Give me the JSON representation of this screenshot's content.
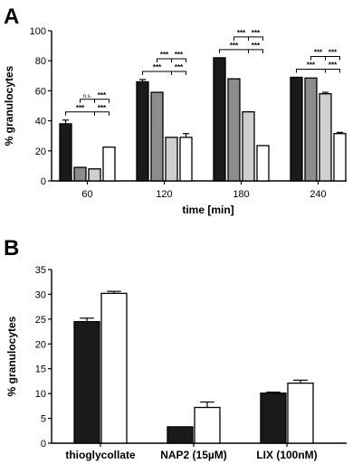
{
  "chart_data": [
    {
      "panel": "A",
      "type": "bar",
      "xlabel": "time [min]",
      "ylabel": "% granulocytes",
      "ylim": [
        0,
        100
      ],
      "yticks": [
        0,
        20,
        40,
        60,
        80,
        100
      ],
      "categories": [
        "60",
        "120",
        "180",
        "240"
      ],
      "series": [
        {
          "color": "#1a1a1a",
          "values": [
            38,
            66,
            82,
            69
          ],
          "errors": [
            2.5,
            1.5,
            0,
            0
          ]
        },
        {
          "color": "#8c8c8c",
          "values": [
            9,
            59,
            68,
            68.5
          ],
          "errors": [
            0,
            0,
            0,
            0
          ]
        },
        {
          "color": "#cfcfcf",
          "values": [
            8,
            29,
            46,
            58
          ],
          "errors": [
            0,
            0,
            0,
            1
          ]
        },
        {
          "color": "#ffffff",
          "values": [
            22.5,
            29,
            23.5,
            31.5
          ],
          "errors": [
            0,
            2.5,
            0,
            0.8
          ]
        }
      ],
      "annotations": [
        {
          "category": 0,
          "from": 1,
          "to": 2,
          "label": "n.s.",
          "level": 2
        },
        {
          "category": 0,
          "from": 2,
          "to": 3,
          "label": "***",
          "level": 2
        },
        {
          "category": 0,
          "from": 0,
          "to": 2,
          "label": "***",
          "level": 1
        },
        {
          "category": 0,
          "from": 2,
          "to": 3,
          "label": "***",
          "level": 1
        },
        {
          "category": 1,
          "from": 1,
          "to": 2,
          "label": "***",
          "level": 2
        },
        {
          "category": 1,
          "from": 2,
          "to": 3,
          "label": "***",
          "level": 2
        },
        {
          "category": 1,
          "from": 0,
          "to": 2,
          "label": "***",
          "level": 1
        },
        {
          "category": 1,
          "from": 2,
          "to": 3,
          "label": "***",
          "level": 1
        },
        {
          "category": 2,
          "from": 1,
          "to": 2,
          "label": "***",
          "level": 2
        },
        {
          "category": 2,
          "from": 2,
          "to": 3,
          "label": "***",
          "level": 2
        },
        {
          "category": 2,
          "from": 0,
          "to": 2,
          "label": "***",
          "level": 1
        },
        {
          "category": 2,
          "from": 2,
          "to": 3,
          "label": "***",
          "level": 1
        },
        {
          "category": 3,
          "from": 1,
          "to": 2,
          "label": "***",
          "level": 2
        },
        {
          "category": 3,
          "from": 2,
          "to": 3,
          "label": "***",
          "level": 2
        },
        {
          "category": 3,
          "from": 0,
          "to": 2,
          "label": "***",
          "level": 1
        },
        {
          "category": 3,
          "from": 2,
          "to": 3,
          "label": "***",
          "level": 1
        }
      ]
    },
    {
      "panel": "B",
      "type": "bar",
      "xlabel": "",
      "ylabel": "% granulocytes",
      "ylim": [
        0,
        35
      ],
      "yticks": [
        0,
        5,
        10,
        15,
        20,
        25,
        30,
        35
      ],
      "categories": [
        "thioglycollate",
        "NAP2 (15µM)",
        "LIX (100nM)"
      ],
      "series": [
        {
          "color": "#1a1a1a",
          "values": [
            24.5,
            3.3,
            10.1
          ],
          "errors": [
            0.7,
            0,
            0.2
          ]
        },
        {
          "color": "#ffffff",
          "values": [
            30.2,
            7.2,
            12.1
          ],
          "errors": [
            0.4,
            1.1,
            0.6
          ]
        }
      ]
    }
  ]
}
